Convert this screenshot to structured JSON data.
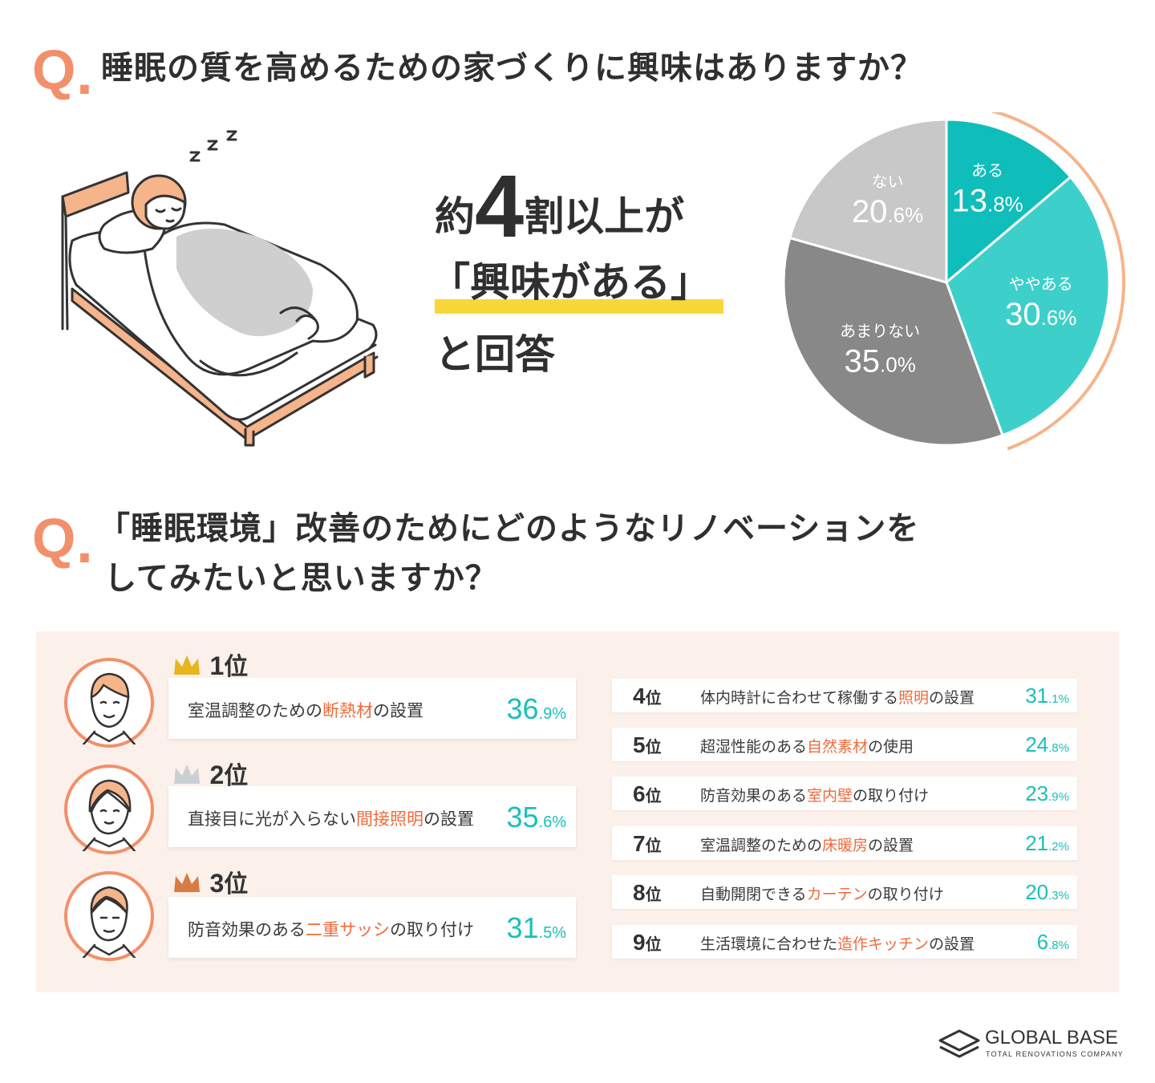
{
  "q1": {
    "mark": "Q",
    "dot": ".",
    "text": "睡眠の質を高めるための家づくりに興味はありますか？"
  },
  "headline": {
    "pre": "約",
    "num": "4",
    "post": "割以上が",
    "line2": "「興味がある」",
    "line3": "と回答"
  },
  "chart_data": {
    "type": "pie",
    "title": "睡眠の質を高めるための家づくりに興味はありますか？",
    "slices": [
      {
        "label": "ある",
        "value": 13.8,
        "int": "13",
        "dec": ".8%",
        "color": "#0fbdba"
      },
      {
        "label": "ややある",
        "value": 30.6,
        "int": "30",
        "dec": ".6%",
        "color": "#3dd0cb"
      },
      {
        "label": "あまりない",
        "value": 35.0,
        "int": "35",
        "dec": ".0%",
        "color": "#888888"
      },
      {
        "label": "ない",
        "value": 20.6,
        "int": "20",
        "dec": ".6%",
        "color": "#c8c8c8"
      }
    ],
    "highlight_color": "#f6b48a"
  },
  "q2": {
    "mark": "Q",
    "dot": ".",
    "line1": "「睡眠環境」改善のためにどのようなリノベーションを",
    "line2": "してみたいと思いますか？"
  },
  "top3": [
    {
      "rank": "1",
      "suffix": "位",
      "pre": "室温調整のための",
      "hl": "断熱材",
      "post": "の設置",
      "int": "36",
      "dec": ".9%"
    },
    {
      "rank": "2",
      "suffix": "位",
      "pre": "直接目に光が入らない",
      "hl": "間接照明",
      "post": "の設置",
      "int": "35",
      "dec": ".6%"
    },
    {
      "rank": "3",
      "suffix": "位",
      "pre": "防音効果のある",
      "hl": "二重サッシ",
      "post": "の取り付け",
      "int": "31",
      "dec": ".5%"
    }
  ],
  "ranks": [
    {
      "rank": "4",
      "suffix": "位",
      "pre": "体内時計に合わせて稼働する",
      "hl": "照明",
      "post": "の設置",
      "int": "31",
      "dec": ".1%"
    },
    {
      "rank": "5",
      "suffix": "位",
      "pre": "超湿性能のある",
      "hl": "自然素材",
      "post": "の使用",
      "int": "24",
      "dec": ".8%"
    },
    {
      "rank": "6",
      "suffix": "位",
      "pre": "防音効果のある",
      "hl": "室内壁",
      "post": "の取り付け",
      "int": "23",
      "dec": ".9%"
    },
    {
      "rank": "7",
      "suffix": "位",
      "pre": "室温調整のための",
      "hl": "床暖房",
      "post": "の設置",
      "int": "21",
      "dec": ".2%"
    },
    {
      "rank": "8",
      "suffix": "位",
      "pre": "自動開閉できる",
      "hl": "カーテン",
      "post": "の取り付け",
      "int": "20",
      "dec": ".3%"
    },
    {
      "rank": "9",
      "suffix": "位",
      "pre": "生活環境に合わせた",
      "hl": "造作キッチン",
      "post": "の設置",
      "int": "6",
      "dec": ".8%"
    }
  ],
  "logo": {
    "name": "GLOBAL BASE",
    "tagline": "TOTAL RENOVATIONS COMPANY"
  },
  "colors": {
    "accent": "#f2906b",
    "teal": "#1bbfba",
    "highlight": "#f06a3c",
    "panel": "#fcf1ea",
    "marker": "#f8d838"
  }
}
